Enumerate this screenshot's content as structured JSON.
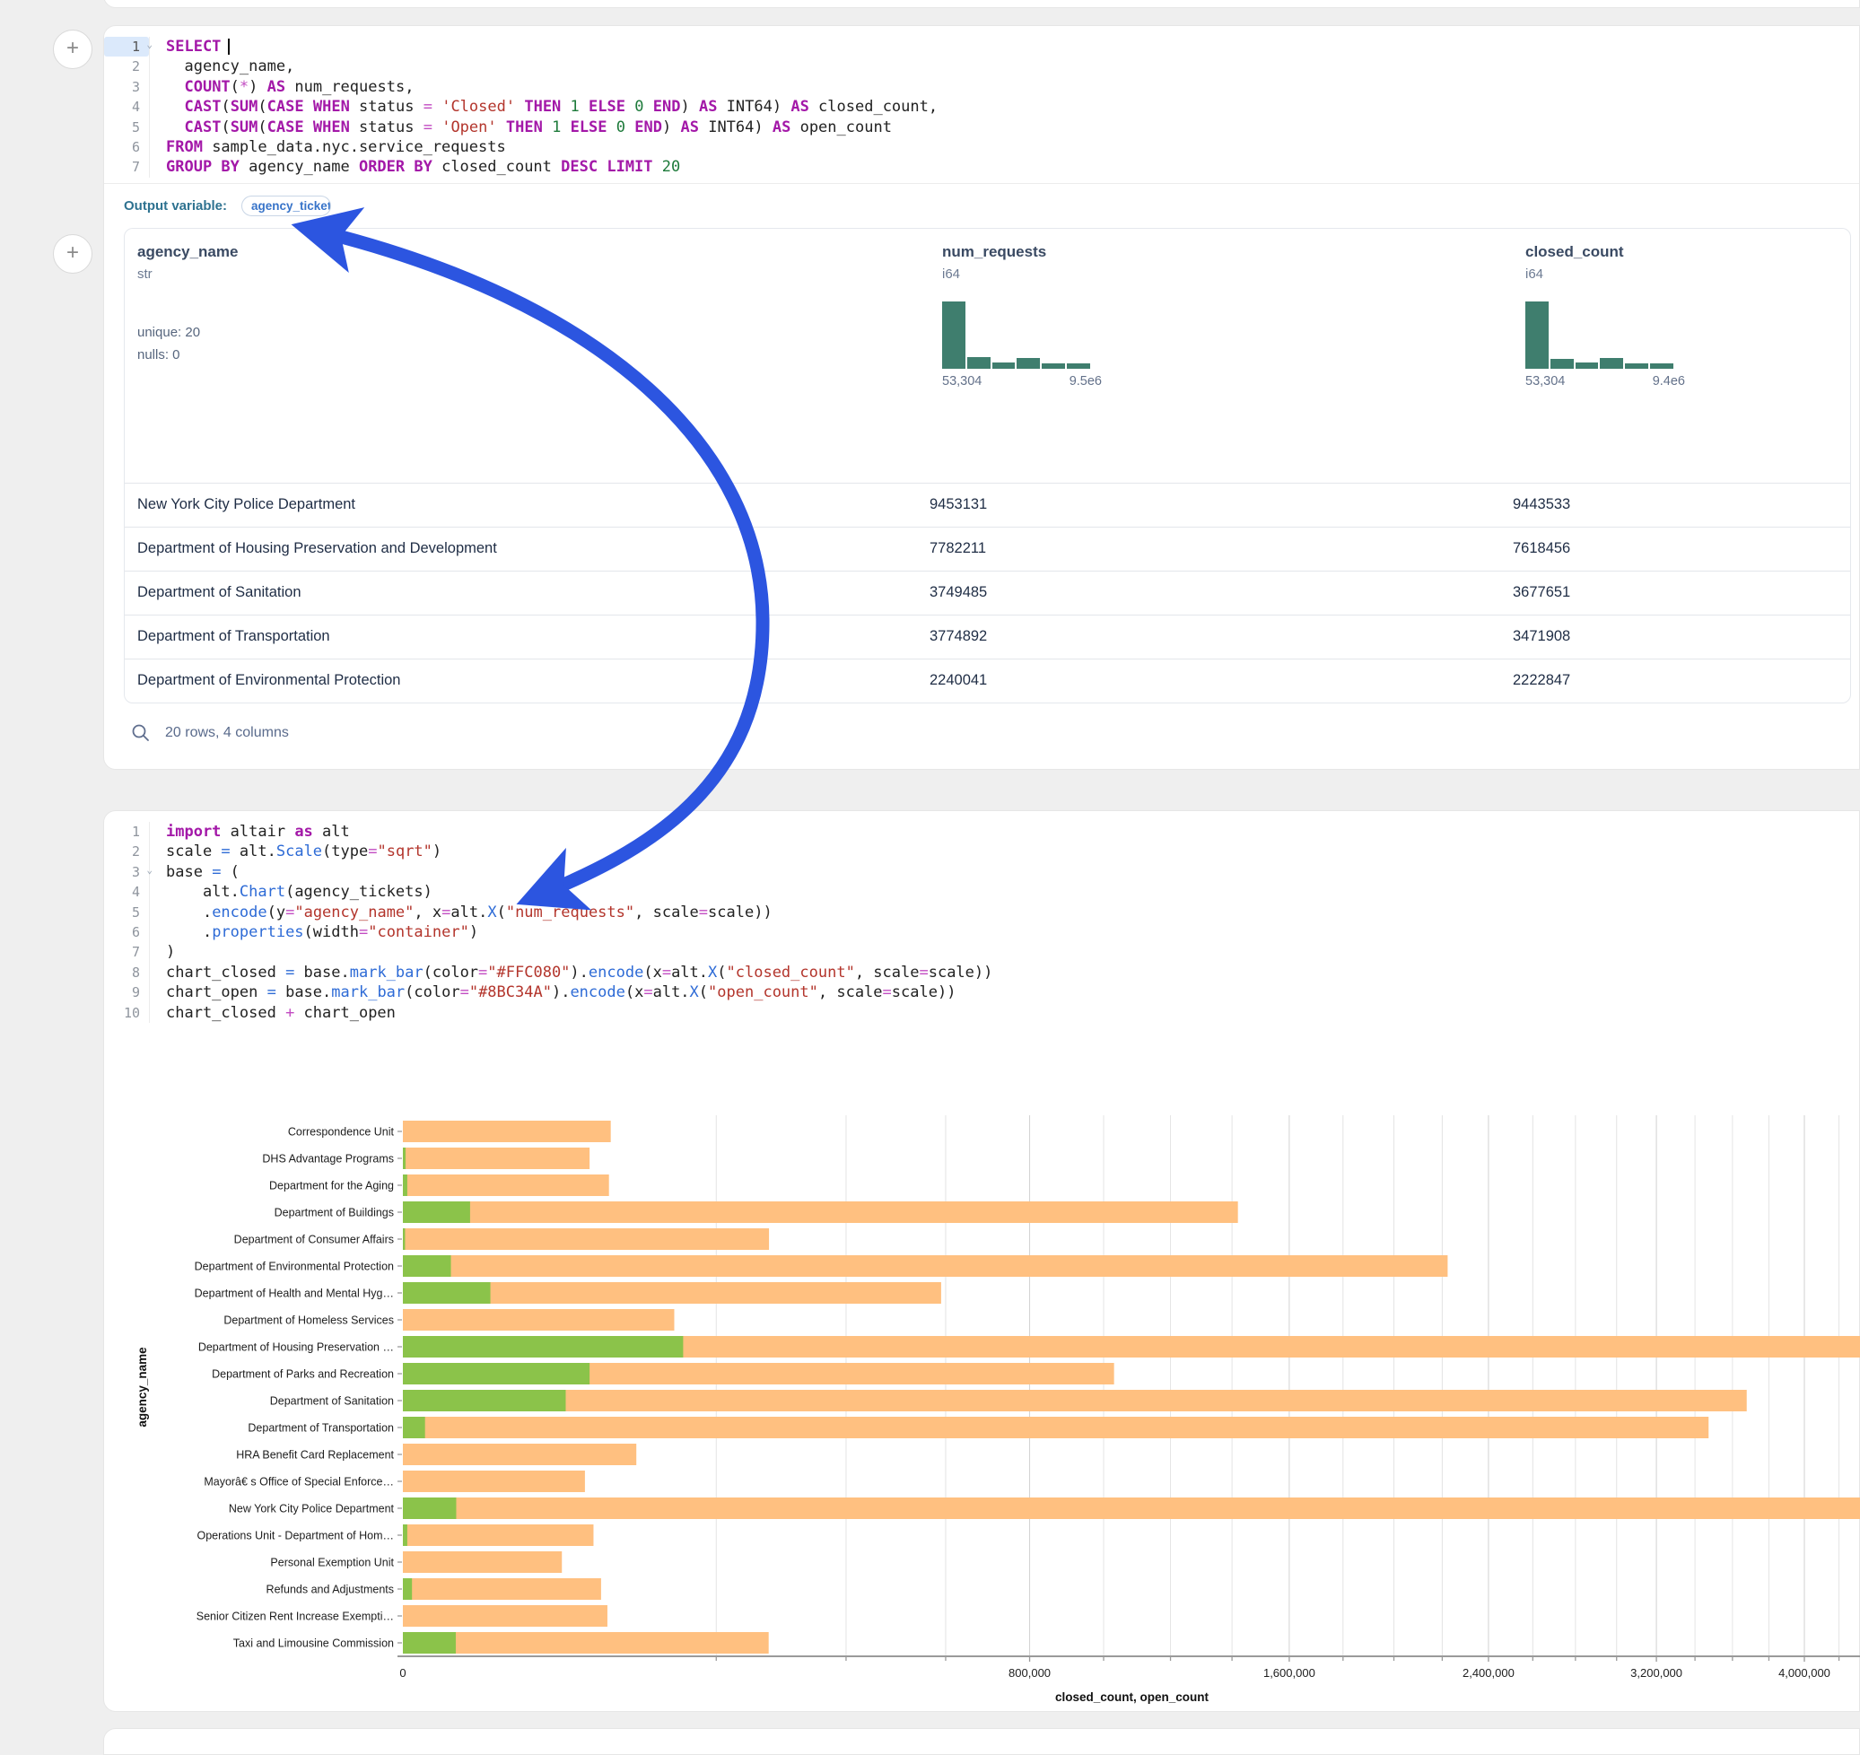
{
  "ui": {
    "add_cell_label": "+",
    "arrow_color": "#2c55e0"
  },
  "colors": {
    "closed_bar": "#FFC080",
    "open_bar": "#8BC34A",
    "histogram": "#3f7e6e"
  },
  "cell1": {
    "language": "sql",
    "code_lines": [
      {
        "n": "1",
        "chevron": true,
        "active": true,
        "caret": true,
        "tokens": [
          [
            "kw",
            "SELECT"
          ]
        ]
      },
      {
        "n": "2",
        "tokens": [
          [
            "pl",
            "  agency_name,"
          ]
        ]
      },
      {
        "n": "3",
        "tokens": [
          [
            "pl",
            "  "
          ],
          [
            "kw",
            "COUNT"
          ],
          [
            "pl",
            "("
          ],
          [
            "op",
            "*"
          ],
          [
            "pl",
            ") "
          ],
          [
            "kw",
            "AS"
          ],
          [
            "pl",
            " num_requests,"
          ]
        ]
      },
      {
        "n": "4",
        "tokens": [
          [
            "pl",
            "  "
          ],
          [
            "kw",
            "CAST"
          ],
          [
            "pl",
            "("
          ],
          [
            "kw",
            "SUM"
          ],
          [
            "pl",
            "("
          ],
          [
            "kw",
            "CASE"
          ],
          [
            "pl",
            " "
          ],
          [
            "kw",
            "WHEN"
          ],
          [
            "pl",
            " status "
          ],
          [
            "op",
            "="
          ],
          [
            "pl",
            " "
          ],
          [
            "str",
            "'Closed'"
          ],
          [
            "pl",
            " "
          ],
          [
            "kw",
            "THEN"
          ],
          [
            "pl",
            " "
          ],
          [
            "num",
            "1"
          ],
          [
            "pl",
            " "
          ],
          [
            "kw",
            "ELSE"
          ],
          [
            "pl",
            " "
          ],
          [
            "num",
            "0"
          ],
          [
            "pl",
            " "
          ],
          [
            "kw",
            "END"
          ],
          [
            "pl",
            ") "
          ],
          [
            "kw",
            "AS"
          ],
          [
            "pl",
            " INT64) "
          ],
          [
            "kw",
            "AS"
          ],
          [
            "pl",
            " closed_count,"
          ]
        ]
      },
      {
        "n": "5",
        "tokens": [
          [
            "pl",
            "  "
          ],
          [
            "kw",
            "CAST"
          ],
          [
            "pl",
            "("
          ],
          [
            "kw",
            "SUM"
          ],
          [
            "pl",
            "("
          ],
          [
            "kw",
            "CASE"
          ],
          [
            "pl",
            " "
          ],
          [
            "kw",
            "WHEN"
          ],
          [
            "pl",
            " status "
          ],
          [
            "op",
            "="
          ],
          [
            "pl",
            " "
          ],
          [
            "str",
            "'Open'"
          ],
          [
            "pl",
            " "
          ],
          [
            "kw",
            "THEN"
          ],
          [
            "pl",
            " "
          ],
          [
            "num",
            "1"
          ],
          [
            "pl",
            " "
          ],
          [
            "kw",
            "ELSE"
          ],
          [
            "pl",
            " "
          ],
          [
            "num",
            "0"
          ],
          [
            "pl",
            " "
          ],
          [
            "kw",
            "END"
          ],
          [
            "pl",
            ") "
          ],
          [
            "kw",
            "AS"
          ],
          [
            "pl",
            " INT64) "
          ],
          [
            "kw",
            "AS"
          ],
          [
            "pl",
            " open_count"
          ]
        ]
      },
      {
        "n": "6",
        "tokens": [
          [
            "kw",
            "FROM"
          ],
          [
            "pl",
            " sample_data.nyc.service_requests"
          ]
        ]
      },
      {
        "n": "7",
        "tokens": [
          [
            "kw",
            "GROUP BY"
          ],
          [
            "pl",
            " agency_name "
          ],
          [
            "kw",
            "ORDER BY"
          ],
          [
            "pl",
            " closed_count "
          ],
          [
            "kw",
            "DESC"
          ],
          [
            "pl",
            " "
          ],
          [
            "kw",
            "LIMIT"
          ],
          [
            "pl",
            " "
          ],
          [
            "num",
            "20"
          ]
        ]
      }
    ],
    "output_variable_label": "Output variable:",
    "output_variable_value": "agency_tickets",
    "table": {
      "columns": [
        {
          "name": "agency_name",
          "type": "str",
          "stats": [
            "unique: 20",
            "nulls: 0"
          ]
        },
        {
          "name": "num_requests",
          "type": "i64",
          "hist_heights": [
            75,
            13,
            7,
            12,
            6,
            6
          ],
          "hist_min": "53,304",
          "hist_max": "9.5e6"
        },
        {
          "name": "closed_count",
          "type": "i64",
          "hist_heights": [
            75,
            11,
            7,
            12,
            6,
            6
          ],
          "hist_min": "53,304",
          "hist_max": "9.4e6"
        }
      ],
      "rows": [
        [
          "New York City Police Department",
          "9453131",
          "9443533"
        ],
        [
          "Department of Housing Preservation and Development",
          "7782211",
          "7618456"
        ],
        [
          "Department of Sanitation",
          "3749485",
          "3677651"
        ],
        [
          "Department of Transportation",
          "3774892",
          "3471908"
        ],
        [
          "Department of Environmental Protection",
          "2240041",
          "2222847"
        ]
      ],
      "footer": "20 rows, 4 columns"
    }
  },
  "cell2": {
    "language": "python",
    "code_lines": [
      {
        "n": "1",
        "tokens": [
          [
            "kw",
            "import"
          ],
          [
            "pl",
            " altair "
          ],
          [
            "kw",
            "as"
          ],
          [
            "pl",
            " alt"
          ]
        ]
      },
      {
        "n": "2",
        "tokens": [
          [
            "pl",
            "scale "
          ],
          [
            "eq",
            "="
          ],
          [
            "pl",
            " alt."
          ],
          [
            "fn",
            "Scale"
          ],
          [
            "pl",
            "(type"
          ],
          [
            "op",
            "="
          ],
          [
            "str",
            "\"sqrt\""
          ],
          [
            "pl",
            ")"
          ]
        ]
      },
      {
        "n": "3",
        "chevron": true,
        "tokens": [
          [
            "pl",
            "base "
          ],
          [
            "eq",
            "="
          ],
          [
            "pl",
            " ("
          ]
        ]
      },
      {
        "n": "4",
        "tokens": [
          [
            "pl",
            "    alt."
          ],
          [
            "fn",
            "Chart"
          ],
          [
            "pl",
            "(agency_tickets)"
          ]
        ]
      },
      {
        "n": "5",
        "tokens": [
          [
            "pl",
            "    ."
          ],
          [
            "fn",
            "encode"
          ],
          [
            "pl",
            "(y"
          ],
          [
            "op",
            "="
          ],
          [
            "str",
            "\"agency_name\""
          ],
          [
            "pl",
            ", x"
          ],
          [
            "op",
            "="
          ],
          [
            "pl",
            "alt."
          ],
          [
            "fn",
            "X"
          ],
          [
            "pl",
            "("
          ],
          [
            "str",
            "\"num_requests\""
          ],
          [
            "pl",
            ", scale"
          ],
          [
            "op",
            "="
          ],
          [
            "pl",
            "scale))"
          ]
        ]
      },
      {
        "n": "6",
        "tokens": [
          [
            "pl",
            "    ."
          ],
          [
            "fn",
            "properties"
          ],
          [
            "pl",
            "(width"
          ],
          [
            "op",
            "="
          ],
          [
            "str",
            "\"container\""
          ],
          [
            "pl",
            ")"
          ]
        ]
      },
      {
        "n": "7",
        "tokens": [
          [
            "pl",
            ")"
          ]
        ]
      },
      {
        "n": "8",
        "tokens": [
          [
            "pl",
            "chart_closed "
          ],
          [
            "eq",
            "="
          ],
          [
            "pl",
            " base."
          ],
          [
            "fn",
            "mark_bar"
          ],
          [
            "pl",
            "(color"
          ],
          [
            "op",
            "="
          ],
          [
            "str",
            "\"#FFC080\""
          ],
          [
            "pl",
            ")."
          ],
          [
            "fn",
            "encode"
          ],
          [
            "pl",
            "(x"
          ],
          [
            "op",
            "="
          ],
          [
            "pl",
            "alt."
          ],
          [
            "fn",
            "X"
          ],
          [
            "pl",
            "("
          ],
          [
            "str",
            "\"closed_count\""
          ],
          [
            "pl",
            ", scale"
          ],
          [
            "op",
            "="
          ],
          [
            "pl",
            "scale))"
          ]
        ]
      },
      {
        "n": "9",
        "tokens": [
          [
            "pl",
            "chart_open "
          ],
          [
            "eq",
            "="
          ],
          [
            "pl",
            " base."
          ],
          [
            "fn",
            "mark_bar"
          ],
          [
            "pl",
            "(color"
          ],
          [
            "op",
            "="
          ],
          [
            "str",
            "\"#8BC34A\""
          ],
          [
            "pl",
            ")."
          ],
          [
            "fn",
            "encode"
          ],
          [
            "pl",
            "(x"
          ],
          [
            "op",
            "="
          ],
          [
            "pl",
            "alt."
          ],
          [
            "fn",
            "X"
          ],
          [
            "pl",
            "("
          ],
          [
            "str",
            "\"open_count\""
          ],
          [
            "pl",
            ", scale"
          ],
          [
            "op",
            "="
          ],
          [
            "pl",
            "scale))"
          ]
        ]
      },
      {
        "n": "10",
        "tokens": [
          [
            "pl",
            "chart_closed "
          ],
          [
            "op",
            "+"
          ],
          [
            "pl",
            " chart_open"
          ]
        ]
      }
    ]
  },
  "chart_data": {
    "type": "bar",
    "orientation": "horizontal",
    "x_scale": "sqrt",
    "xlabel": "closed_count, open_count",
    "ylabel": "agency_name",
    "grid": true,
    "legend": "none",
    "x_minor_tick_step": 200000,
    "x_ticks": [
      {
        "v": 0,
        "label": "0"
      },
      {
        "v": 800000,
        "label": "800,000"
      },
      {
        "v": 1600000,
        "label": "1,600,000"
      },
      {
        "v": 2400000,
        "label": "2,400,000"
      },
      {
        "v": 3200000,
        "label": "3,200,000"
      },
      {
        "v": 4000000,
        "label": "4,000,000"
      }
    ],
    "categories": [
      "Correspondence Unit",
      "DHS Advantage Programs",
      "Department for the Aging",
      "Department of Buildings",
      "Department of Consumer Affairs",
      "Department of Environmental Protection",
      "Department of Health and Mental Hyg…",
      "Department of Homeless Services",
      "Department of Housing Preservation …",
      "Department of Parks and Recreation",
      "Department of Sanitation",
      "Department of Transportation",
      "HRA Benefit Card Replacement",
      "Mayorâ€ s Office of Special Enforce…",
      "New York City Police Department",
      "Operations Unit - Department of Hom…",
      "Personal Exemption Unit",
      "Refunds and Adjustments",
      "Senior Citizen Rent Increase Exempti…",
      "Taxi and Limousine Commission"
    ],
    "series": [
      {
        "name": "closed_count",
        "color": "#FFC080",
        "values": [
          88000,
          71000,
          86500,
          1420000,
          273000,
          2222847,
          590000,
          150000,
          7618456,
          1030000,
          3677651,
          3471908,
          111000,
          67500,
          9443533,
          74000,
          51500,
          80000,
          85200,
          272500
        ]
      },
      {
        "name": "open_count",
        "color": "#8BC34A",
        "values": [
          0,
          15,
          40,
          9200,
          10,
          4700,
          15600,
          0,
          160000,
          71000,
          54000,
          1000,
          0,
          0,
          5800,
          40,
          0,
          170,
          0,
          5700
        ]
      }
    ]
  }
}
